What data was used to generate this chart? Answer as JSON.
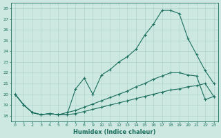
{
  "xlabel": "Humidex (Indice chaleur)",
  "background_color": "#cce8e0",
  "line_color": "#1a6e5e",
  "grid_color": "#aacfc8",
  "xlim": [
    -0.5,
    23.5
  ],
  "ylim": [
    17.5,
    28.5
  ],
  "yticks": [
    18,
    19,
    20,
    21,
    22,
    23,
    24,
    25,
    26,
    27,
    28
  ],
  "xticks": [
    0,
    1,
    2,
    3,
    4,
    5,
    6,
    7,
    8,
    9,
    10,
    11,
    12,
    13,
    14,
    15,
    16,
    17,
    18,
    19,
    20,
    21,
    22,
    23
  ],
  "line1_x": [
    0,
    1,
    2,
    3,
    4,
    5,
    6,
    7,
    8,
    9,
    10,
    11,
    12,
    13,
    14,
    15,
    16,
    17,
    18,
    19,
    20,
    21,
    22,
    23
  ],
  "line1_y": [
    20.0,
    19.0,
    18.3,
    18.1,
    18.2,
    18.1,
    18.1,
    20.5,
    21.5,
    20.0,
    21.8,
    22.3,
    23.0,
    23.5,
    24.2,
    25.5,
    26.5,
    27.8,
    27.8,
    27.5,
    25.2,
    23.7,
    22.2,
    21.0
  ],
  "line2_x": [
    0,
    1,
    2,
    3,
    4,
    5,
    6,
    7,
    8,
    9,
    10,
    11,
    12,
    13,
    14,
    15,
    16,
    17,
    18,
    19,
    20,
    21,
    22,
    23
  ],
  "line2_y": [
    20.0,
    19.0,
    18.3,
    18.1,
    18.2,
    18.1,
    18.3,
    18.5,
    18.8,
    19.1,
    19.4,
    19.7,
    20.0,
    20.3,
    20.7,
    21.0,
    21.4,
    21.7,
    22.0,
    22.0,
    21.8,
    21.7,
    19.5,
    19.8
  ],
  "line3_x": [
    0,
    1,
    2,
    3,
    4,
    5,
    6,
    7,
    8,
    9,
    10,
    11,
    12,
    13,
    14,
    15,
    16,
    17,
    18,
    19,
    20,
    21,
    22,
    23
  ],
  "line3_y": [
    20.0,
    19.0,
    18.3,
    18.1,
    18.2,
    18.1,
    18.1,
    18.2,
    18.4,
    18.6,
    18.8,
    19.0,
    19.2,
    19.4,
    19.6,
    19.8,
    20.0,
    20.2,
    20.4,
    20.5,
    20.7,
    20.8,
    21.0,
    19.8
  ]
}
